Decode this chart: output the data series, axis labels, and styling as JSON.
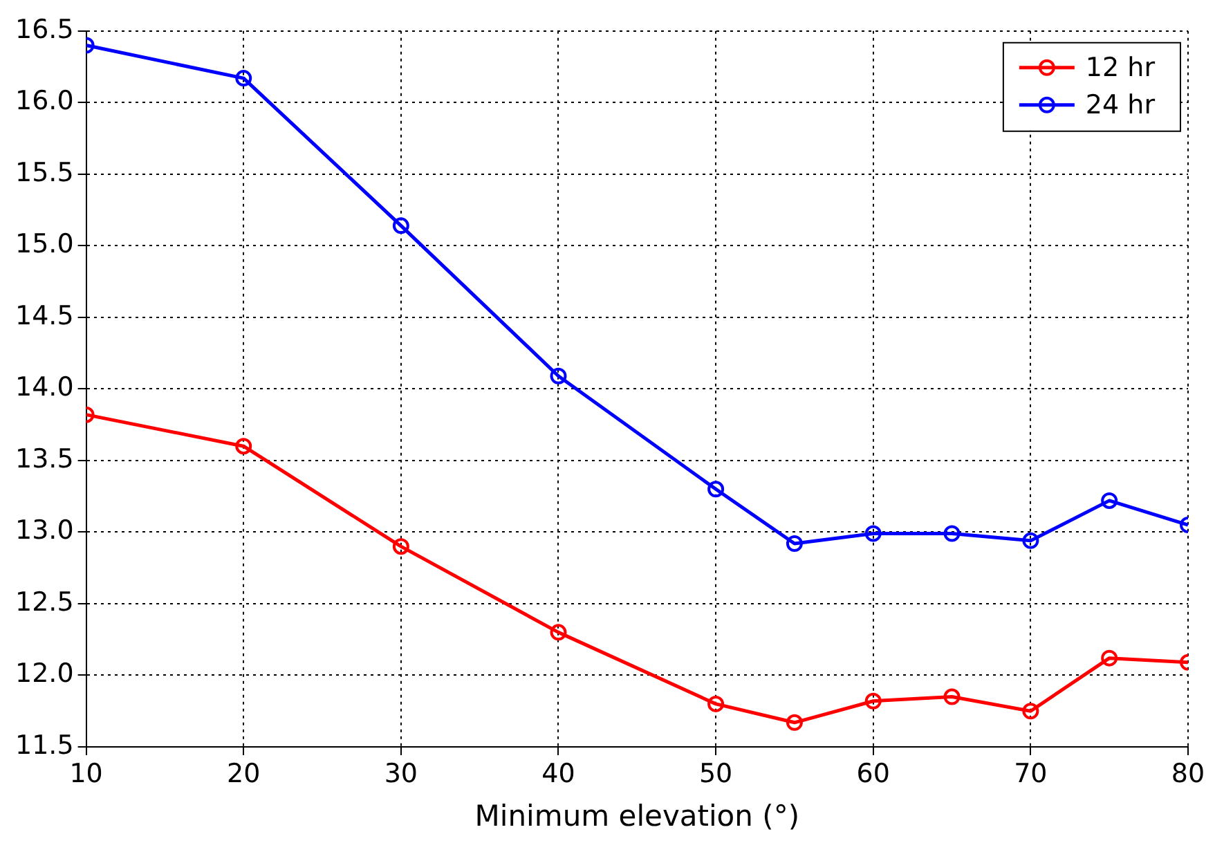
{
  "chart_data": {
    "type": "line",
    "xlabel": "Minimum elevation (°)",
    "x": [
      10,
      20,
      30,
      40,
      50,
      55,
      60,
      65,
      70,
      75,
      80
    ],
    "series": [
      {
        "name": "12 hr",
        "color": "#ff0000",
        "values": [
          13.82,
          13.6,
          12.9,
          12.3,
          11.8,
          11.67,
          11.82,
          11.85,
          11.75,
          12.12,
          12.09
        ]
      },
      {
        "name": "24 hr",
        "color": "#0000ff",
        "values": [
          16.4,
          16.17,
          15.14,
          14.09,
          13.3,
          12.92,
          12.99,
          12.99,
          12.94,
          13.22,
          13.05
        ]
      }
    ],
    "xlim": [
      10,
      80
    ],
    "xticks": [
      10,
      20,
      30,
      40,
      50,
      60,
      70,
      80
    ],
    "ylim": [
      11.5,
      16.5
    ],
    "yticks": [
      {
        "value": 11.5,
        "label": "11.5"
      },
      {
        "value": 12,
        "label": "12.0"
      },
      {
        "value": 12.5,
        "label": "12.5"
      },
      {
        "value": 13,
        "label": "13.0"
      },
      {
        "value": 13.5,
        "label": "13.5"
      },
      {
        "value": 14,
        "label": "14.0"
      },
      {
        "value": 14.5,
        "label": "14.5"
      },
      {
        "value": 15,
        "label": "15.0"
      },
      {
        "value": 15.5,
        "label": "15.5"
      },
      {
        "value": 16,
        "label": "16.0"
      },
      {
        "value": 16.5,
        "label": "16.5"
      }
    ],
    "grid": true,
    "legend": "top right",
    "marker": "circle",
    "line_style": "solid"
  }
}
